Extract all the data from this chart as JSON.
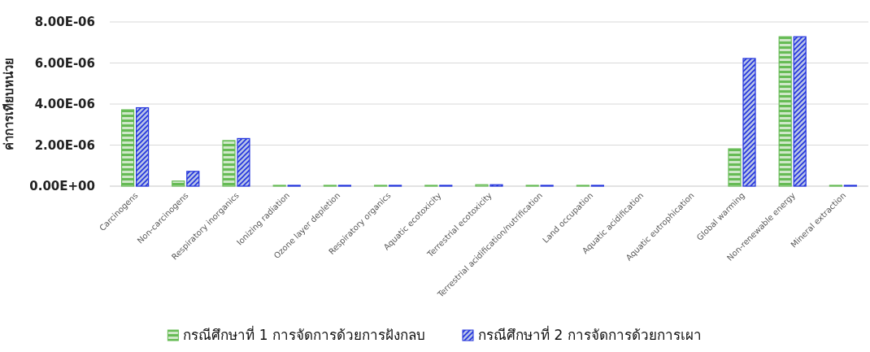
{
  "chart_data": {
    "type": "bar",
    "ylabel": "ค่าการเทียบหน่วย",
    "categories": [
      "Carcinogens",
      "Non-carcinogens",
      "Respiratory inorganics",
      "Ionizing radiation",
      "Ozone layer depletion",
      "Respiratory organics",
      "Aquatic ecotoxicity",
      "Terrestrial ecotoxicity",
      "Terrestrial acidification/nutrification",
      "Land occupation",
      "Aquatic acidification",
      "Aquatic eutrophication",
      "Global warming",
      "Non-renewable energy",
      "Mineral extraction"
    ],
    "series": [
      {
        "name": "กรณีศึกษาที่ 1 การจัดการด้วยการฝังกลบ",
        "color": "#66bb55",
        "values": [
          3.72e-06,
          2.5e-07,
          2.22e-06,
          4e-08,
          4e-08,
          4e-08,
          4e-08,
          7e-08,
          4e-08,
          4e-08,
          0,
          0,
          1.82e-06,
          7.28e-06,
          4e-08
        ]
      },
      {
        "name": "กรณีศึกษาที่ 2 การจัดการด้วยการเผา",
        "color": "#2233dd",
        "values": [
          3.82e-06,
          7.2e-07,
          2.32e-06,
          4e-08,
          4e-08,
          4e-08,
          4e-08,
          7e-08,
          4e-08,
          4e-08,
          0,
          0,
          6.22e-06,
          7.28e-06,
          4e-08
        ]
      }
    ],
    "ylim": [
      0,
      8e-06
    ],
    "yticks": [
      {
        "value": 0,
        "label": "0.00E+00"
      },
      {
        "value": 2e-06,
        "label": "2.00E-06"
      },
      {
        "value": 4e-06,
        "label": "4.00E-06"
      },
      {
        "value": 6e-06,
        "label": "6.00E-06"
      },
      {
        "value": 8e-06,
        "label": "8.00E-06"
      }
    ],
    "grid": "y",
    "legend": "bottom"
  }
}
